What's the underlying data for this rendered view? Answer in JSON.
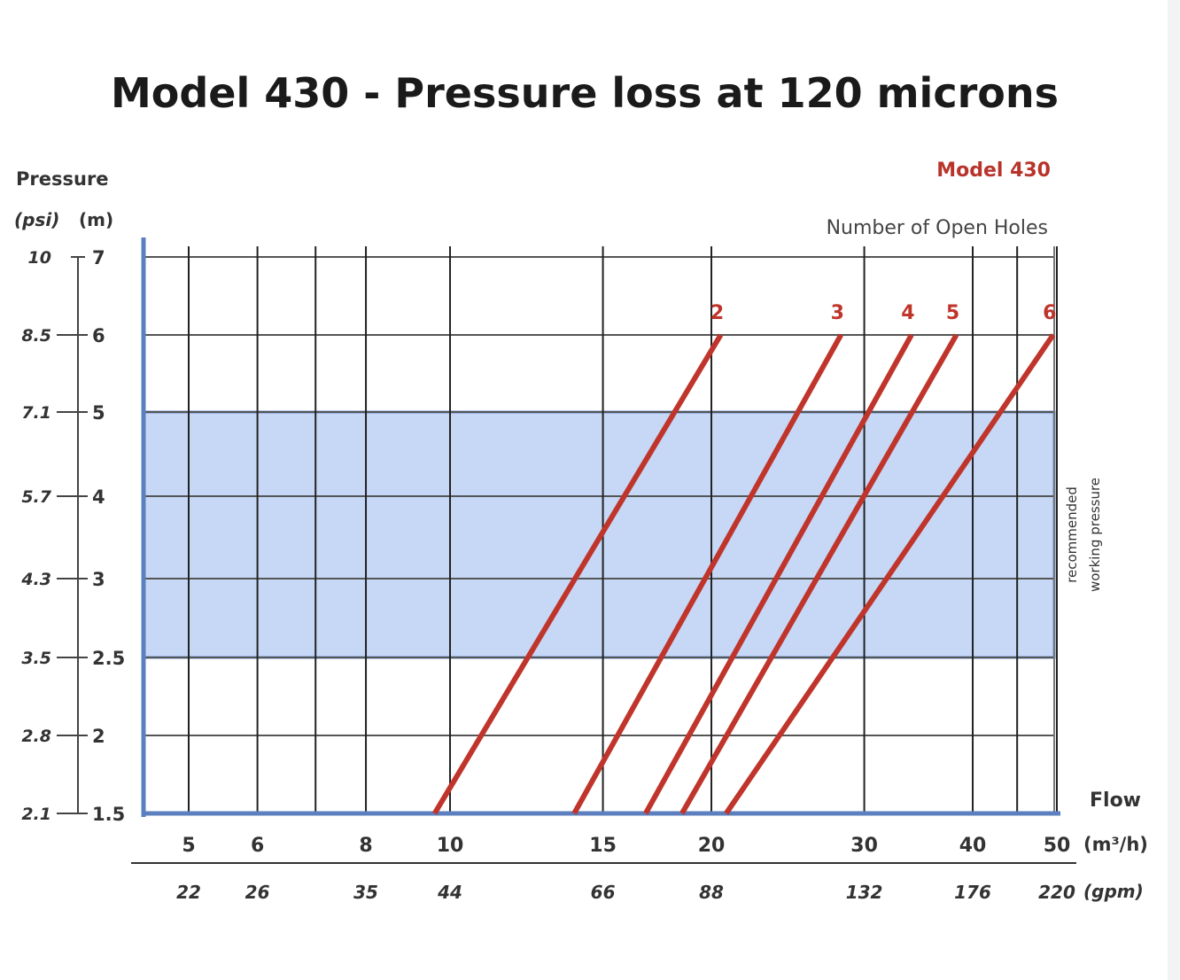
{
  "chart_data": {
    "type": "line",
    "title": "Model 430 - Pressure loss at 120 microns",
    "legend_title": "Model 430",
    "legend_subtitle": "Number of Open Holes",
    "y_axis": {
      "header": "Pressure",
      "psi_unit": "(psi)",
      "m_unit": "(m)",
      "ticks_m": [
        1.5,
        2,
        2.5,
        3,
        4,
        5,
        6,
        7
      ],
      "ticks_m_labels": [
        "1.5",
        "2",
        "2.5",
        "3",
        "4",
        "5",
        "6",
        "7"
      ],
      "ticks_psi_labels": [
        "2.1",
        "2.8",
        "3.5",
        "4.3",
        "5.7",
        "7.1",
        "8.5",
        "10"
      ]
    },
    "x_axis": {
      "label": "Flow",
      "scale": "log",
      "m3h_unit": "(m³/h)",
      "gpm_unit": "(gpm)",
      "ticks_m3h": [
        5,
        6,
        8,
        10,
        15,
        20,
        30,
        40,
        50
      ],
      "ticks_m3h_labels": [
        "5",
        "6",
        "8",
        "10",
        "15",
        "20",
        "30",
        "40",
        "50"
      ],
      "ticks_gpm_labels": [
        "22",
        "26",
        "35",
        "44",
        "66",
        "88",
        "132",
        "176",
        "220"
      ],
      "extra_gridlines_m3h": [
        7,
        45
      ]
    },
    "band": {
      "range_m": [
        2.5,
        5
      ],
      "label_line1": "recommended",
      "label_line2": "working pressure",
      "color": "#c6d8f6",
      "border_color": "#6b8fce"
    },
    "series": [
      {
        "name": "2",
        "points": [
          [
            9.6,
            1.5
          ],
          [
            20.5,
            6
          ]
        ]
      },
      {
        "name": "3",
        "points": [
          [
            13.9,
            1.5
          ],
          [
            28.2,
            6
          ]
        ]
      },
      {
        "name": "4",
        "points": [
          [
            16.8,
            1.5
          ],
          [
            34.0,
            6
          ]
        ]
      },
      {
        "name": "5",
        "points": [
          [
            18.5,
            1.5
          ],
          [
            38.3,
            6
          ]
        ]
      },
      {
        "name": "6",
        "points": [
          [
            20.8,
            1.5
          ],
          [
            49.5,
            6
          ]
        ]
      }
    ],
    "series_color": "#c0352b",
    "grid": true
  }
}
